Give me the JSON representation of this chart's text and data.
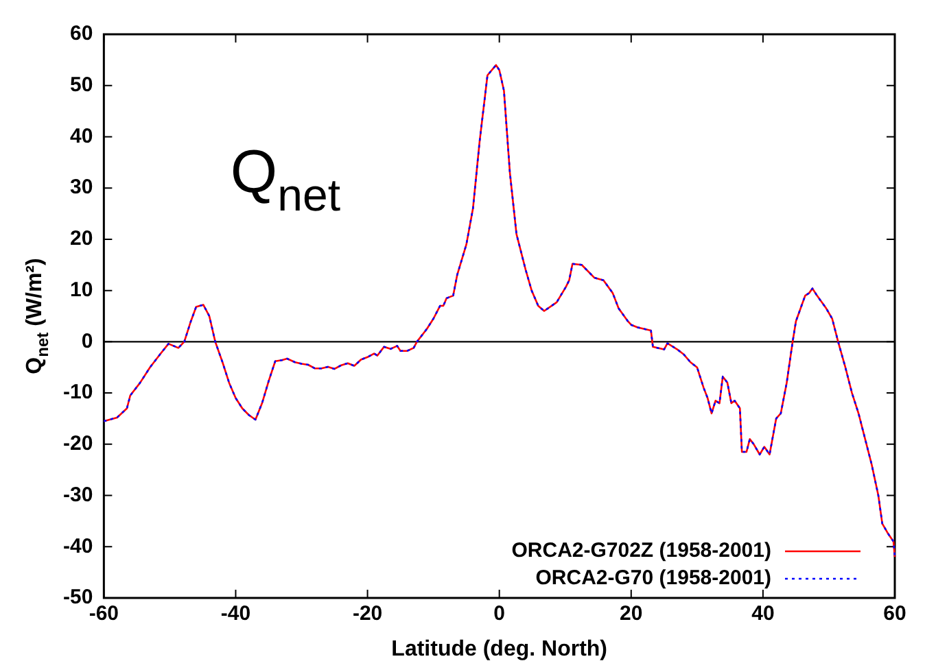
{
  "chart_data": {
    "type": "line",
    "xlabel": "Latitude (deg. North)",
    "ylabel": "Q$_{net}$ (W/m²)",
    "annotations": [
      "Q$_{net}$"
    ],
    "x": [
      -60,
      -58,
      -56.5,
      -56,
      -54.5,
      -53,
      -51.5,
      -50.2,
      -48.7,
      -47.8,
      -46.8,
      -46,
      -44.9,
      -44,
      -43.1,
      -42,
      -41,
      -40,
      -39,
      -38,
      -37,
      -36,
      -35,
      -34,
      -33,
      -32.2,
      -31,
      -30,
      -29,
      -28,
      -27,
      -26,
      -25,
      -24,
      -23,
      -22,
      -21,
      -20,
      -19,
      -18.5,
      -17.5,
      -16.5,
      -15.5,
      -15,
      -14,
      -13,
      -12.5,
      -11,
      -10,
      -9,
      -8.5,
      -8,
      -7,
      -6.4,
      -5,
      -4,
      -3,
      -1.8,
      -0.5,
      0,
      0.7,
      1.6,
      2.6,
      4,
      4.9,
      5.9,
      6.8,
      8.7,
      10.1,
      10.6,
      11.1,
      12.5,
      14.4,
      15.8,
      17.2,
      18.1,
      19.5,
      20,
      21,
      22,
      23,
      23.3,
      25,
      25.5,
      27,
      28,
      29,
      30,
      31,
      31.6,
      32.2,
      32.8,
      33.4,
      33.9,
      34.6,
      35.2,
      35.7,
      36.5,
      36.8,
      37.5,
      38,
      38.6,
      39.5,
      40.2,
      41,
      42,
      42.7,
      43.6,
      44.5,
      45,
      46.4,
      47,
      47.5,
      48.2,
      49.6,
      50.5,
      51.4,
      52.5,
      53.5,
      54.5,
      55.5,
      56.5,
      57.5,
      58.1,
      59,
      59.8,
      60
    ],
    "series": [
      {
        "name": "ORCA2-G702Z (1958-2001)",
        "color": "#ff0000",
        "line_style": "solid",
        "values": [
          -15.5,
          -14.8,
          -13,
          -10.5,
          -8,
          -5,
          -2.5,
          -0.4,
          -1.2,
          0,
          4,
          6.8,
          7.2,
          5,
          0,
          -4,
          -8,
          -11,
          -13,
          -14.3,
          -15.2,
          -12,
          -7.7,
          -3.8,
          -3.6,
          -3.3,
          -4,
          -4.3,
          -4.5,
          -5.2,
          -5.2,
          -4.9,
          -5.3,
          -4.6,
          -4.2,
          -4.7,
          -3.5,
          -3,
          -2.3,
          -2.7,
          -1,
          -1.4,
          -0.8,
          -1.8,
          -1.8,
          -1.2,
          0,
          2.5,
          4.5,
          7,
          7,
          8.5,
          9,
          13,
          19,
          26,
          39,
          52,
          54,
          53,
          49,
          33,
          21,
          14,
          10,
          7,
          6,
          7.7,
          10.7,
          12,
          15.2,
          15,
          12.5,
          12,
          9.5,
          6.5,
          4,
          3.3,
          2.8,
          2.5,
          2.2,
          -1,
          -1.5,
          -0.3,
          -1.5,
          -2.5,
          -4,
          -5,
          -9,
          -11,
          -14,
          -11.5,
          -12,
          -6.8,
          -8,
          -12,
          -11.5,
          -13,
          -21.5,
          -21.5,
          -19,
          -20,
          -22,
          -20.5,
          -22,
          -15,
          -14,
          -8,
          0,
          4,
          9,
          9.5,
          10.4,
          9,
          6.5,
          4.5,
          0,
          -5,
          -10,
          -14,
          -19,
          -24,
          -30,
          -35.5,
          -37.5,
          -39,
          -42
        ]
      },
      {
        "name": "ORCA2-G70 (1958-2001)",
        "color": "#0000ff",
        "line_style": "dotted",
        "values": [
          -15.5,
          -14.8,
          -13,
          -10.5,
          -8,
          -5,
          -2.5,
          -0.4,
          -1.2,
          0,
          4,
          6.8,
          7.2,
          5,
          0,
          -4,
          -8,
          -11,
          -13,
          -14.3,
          -15.2,
          -12,
          -7.7,
          -3.8,
          -3.6,
          -3.3,
          -4,
          -4.3,
          -4.5,
          -5.2,
          -5.2,
          -4.9,
          -5.3,
          -4.6,
          -4.2,
          -4.7,
          -3.5,
          -3,
          -2.3,
          -2.7,
          -1,
          -1.4,
          -0.8,
          -1.8,
          -1.8,
          -1.2,
          0,
          2.5,
          4.5,
          7,
          7,
          8.5,
          9,
          13,
          19,
          26,
          39,
          52,
          54,
          53,
          49,
          33,
          21,
          14,
          10,
          7,
          6,
          7.7,
          10.7,
          12,
          15.2,
          15,
          12.5,
          12,
          9.5,
          6.5,
          4,
          3.3,
          2.8,
          2.5,
          2.2,
          -1,
          -1.5,
          -0.3,
          -1.5,
          -2.5,
          -4,
          -5,
          -9,
          -11,
          -14,
          -11.5,
          -12,
          -6.8,
          -8,
          -12,
          -11.5,
          -13,
          -21.5,
          -21.5,
          -19,
          -20,
          -22,
          -20.5,
          -22,
          -15,
          -14,
          -8,
          0,
          4,
          9,
          9.5,
          10.4,
          9,
          6.5,
          4.5,
          0,
          -5,
          -10,
          -14,
          -19,
          -24,
          -30,
          -35.5,
          -37.5,
          -39,
          -42
        ]
      }
    ],
    "xlim": [
      -60,
      60
    ],
    "xticks": [
      -60,
      -40,
      -20,
      0,
      20,
      40,
      60
    ],
    "ylim": [
      -50,
      60
    ],
    "yticks": [
      -50,
      -40,
      -30,
      -20,
      -10,
      0,
      10,
      20,
      30,
      40,
      50,
      60
    ],
    "ref_lines": [
      {
        "axis": "y",
        "value": 0,
        "color": "#000000"
      }
    ],
    "grid": false,
    "legend": "bottom right",
    "marker": "none"
  }
}
